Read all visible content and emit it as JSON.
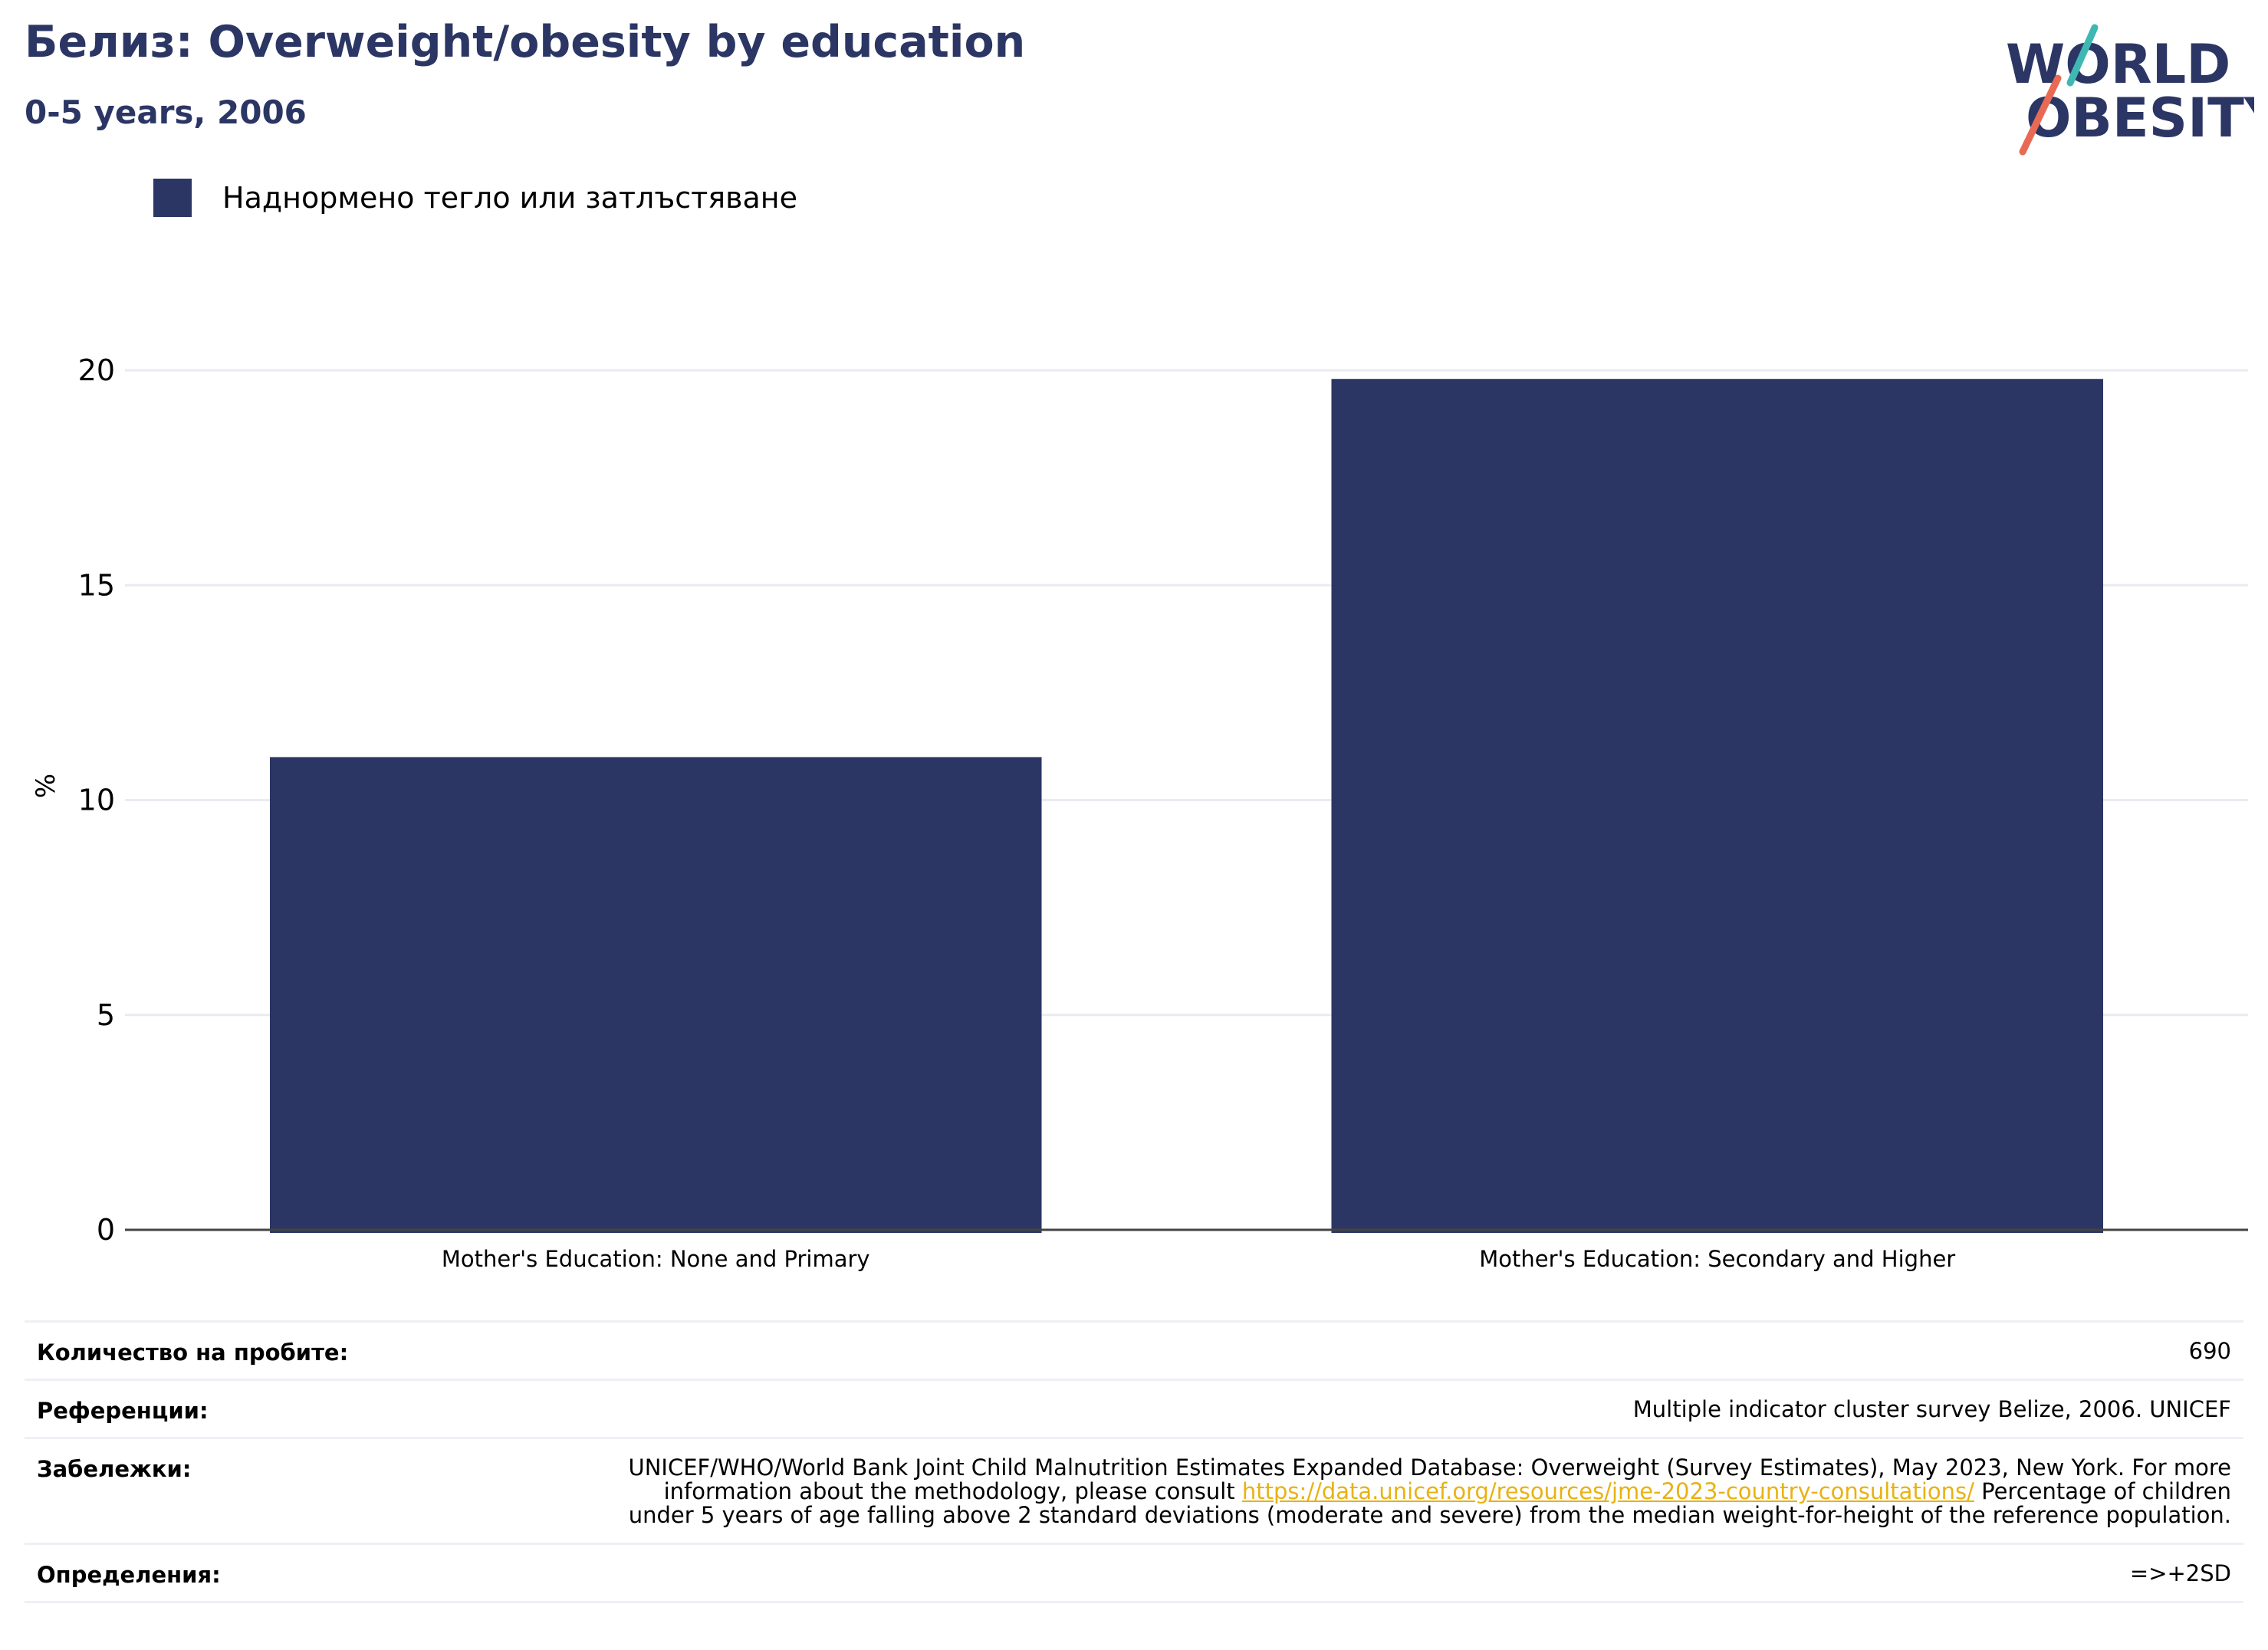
{
  "title": "Белиз: Overweight/obesity by education",
  "subtitle": "0-5 years, 2006",
  "logo": {
    "line1": "WORLD",
    "line2": "OBESITY"
  },
  "legend": [
    {
      "label": "Наднормено тегло или затлъстяване",
      "color": "#2b3664"
    }
  ],
  "chart_data": {
    "type": "bar",
    "categories": [
      "Mother's Education: None and Primary",
      "Mother's Education: Secondary and Higher"
    ],
    "series": [
      {
        "name": "Наднормено тегло или затлъстяване",
        "values": [
          11.0,
          19.8
        ],
        "color": "#2b3664"
      }
    ],
    "ylabel": "%",
    "ylim": [
      0,
      20
    ],
    "yticks": [
      0,
      5,
      10,
      15,
      20
    ],
    "grid": true,
    "legend_position": "top-left"
  },
  "meta": {
    "sample_label": "Количество на пробите:",
    "sample_value": "690",
    "references_label": "Референции:",
    "references_value": "Multiple indicator cluster survey Belize, 2006. UNICEF",
    "notes_label": "Забележки:",
    "notes_before": "UNICEF/WHO/World Bank Joint Child Malnutrition Estimates Expanded Database: Overweight (Survey Estimates), May 2023, New York. For more information about the methodology, please consult ",
    "notes_link": "https://data.unicef.org/resources/jme-2023-country-consultations/",
    "notes_after": " Percentage of children under 5 years of age falling above 2 standard deviations (moderate and severe) from the median weight-for-height of the reference population.",
    "definitions_label": "Определения:",
    "definitions_value": "=>+2SD"
  }
}
